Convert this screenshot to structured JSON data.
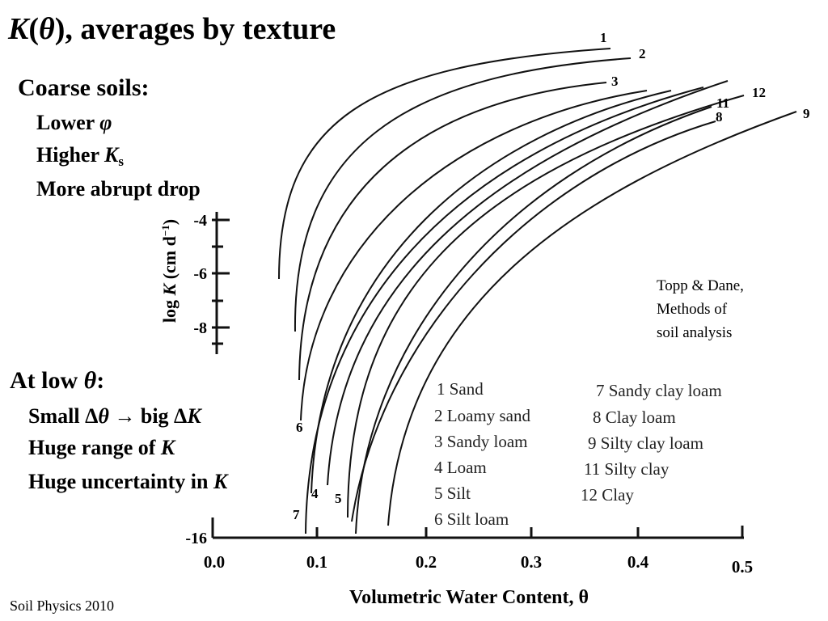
{
  "title": [
    "K",
    "(",
    "θ",
    "), averages by texture"
  ],
  "coarse": {
    "heading": "Coarse soils:",
    "items": [
      [
        "Lower ",
        "φ"
      ],
      [
        "Higher ",
        "K",
        "s"
      ],
      [
        "More abrupt drop"
      ]
    ]
  },
  "low": {
    "heading": [
      "At low ",
      "θ",
      ":"
    ],
    "items": [
      [
        "Small Δ",
        "θ",
        " → big Δ",
        "K"
      ],
      [
        "Huge range of ",
        "K"
      ],
      [
        "Huge uncertainty in ",
        "K"
      ]
    ]
  },
  "figure": {
    "y_label": [
      "log ",
      "K",
      " (cm d",
      "−1",
      ")"
    ],
    "y_ticks": [
      "-4",
      "-6",
      "-8",
      "-16"
    ],
    "x_label": "Volumetric Water Content, θ",
    "x_ticks": [
      "0.0",
      "0.1",
      "0.2",
      "0.3",
      "0.4",
      "0.5"
    ],
    "curve_labels": [
      "1",
      "2",
      "3",
      "12",
      "11",
      "8",
      "9",
      "4",
      "5",
      "7",
      "6"
    ],
    "legend": [
      "1 Sand",
      "2 Loamy sand",
      "3 Sandy loam",
      "4 Loam",
      "5 Silt",
      "6 Silt loam",
      "7 Sandy clay loam",
      "8 Clay loam",
      "9 Silty clay loam",
      "11 Silty clay",
      "12 Clay"
    ],
    "source": [
      "Topp & Dane,",
      "Methods of",
      "soil analysis"
    ]
  },
  "footer": "Soil Physics 2010"
}
